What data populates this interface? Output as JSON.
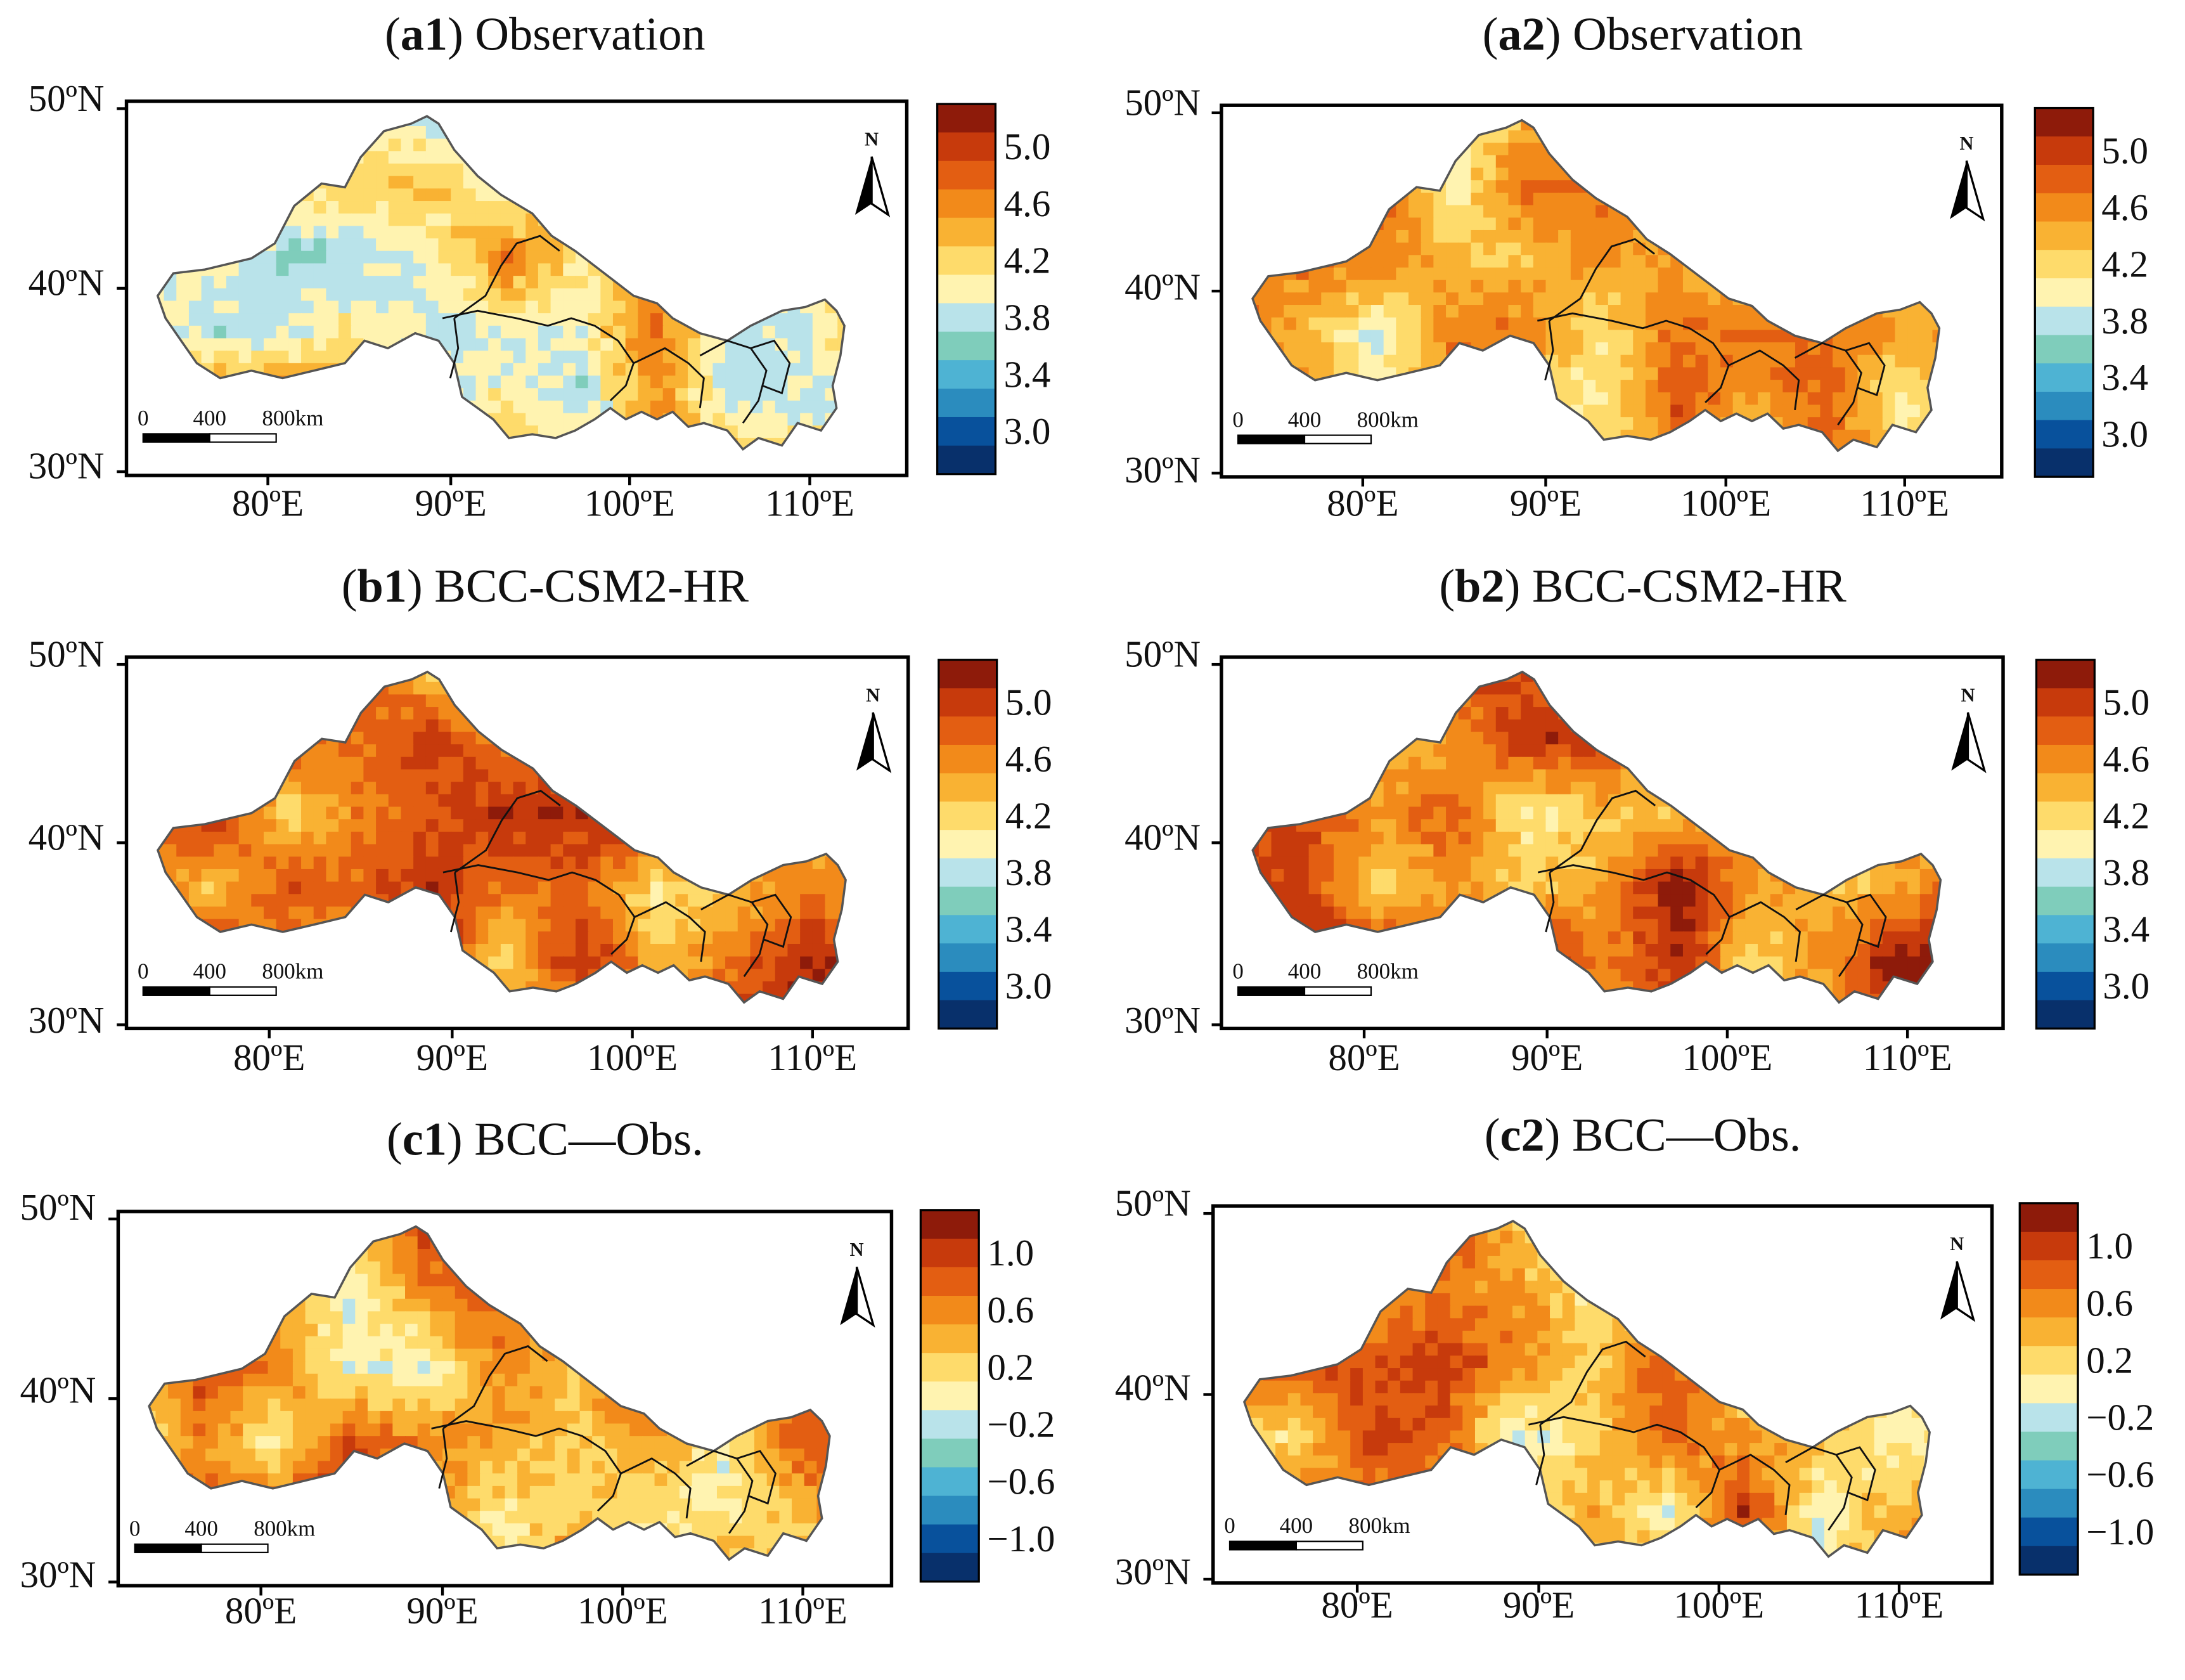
{
  "panels": [
    {
      "id": "a1",
      "title_letter": "a1",
      "title_text": "Observation",
      "legend_type": "abs",
      "legend_labels": [
        "5.0",
        "4.6",
        "4.2",
        "3.8",
        "3.4",
        "3.0"
      ],
      "base_level": 4.25,
      "variability": 0.32
    },
    {
      "id": "a2",
      "title_letter": "a2",
      "title_text": "Observation",
      "legend_type": "abs",
      "legend_labels": [
        "5.0",
        "4.6",
        "4.2",
        "3.8",
        "3.4",
        "3.0"
      ],
      "base_level": 4.35,
      "variability": 0.28
    },
    {
      "id": "b1",
      "title_letter": "b1",
      "title_text": "BCC-CSM2-HR",
      "legend_type": "abs",
      "legend_labels": [
        "5.0",
        "4.6",
        "4.2",
        "3.8",
        "3.4",
        "3.0"
      ],
      "base_level": 4.6,
      "variability": 0.3
    },
    {
      "id": "b2",
      "title_letter": "b2",
      "title_text": "BCC-CSM2-HR",
      "legend_type": "abs",
      "legend_labels": [
        "5.0",
        "4.6",
        "4.2",
        "3.8",
        "3.4",
        "3.0"
      ],
      "base_level": 4.65,
      "variability": 0.33
    },
    {
      "id": "c1",
      "title_letter": "c1",
      "title_text": "BCC—Obs.",
      "legend_type": "diff",
      "legend_labels": [
        "1.0",
        "0.6",
        "0.2",
        "−0.2",
        "−0.6",
        "−1.0"
      ],
      "base_level": 0.45,
      "variability": 0.35
    },
    {
      "id": "c2",
      "title_letter": "c2",
      "title_text": "BCC—Obs.",
      "legend_type": "diff",
      "legend_labels": [
        "1.0",
        "0.6",
        "0.2",
        "−0.2",
        "−0.6",
        "−1.0"
      ],
      "base_level": 0.4,
      "variability": 0.35
    }
  ],
  "axes": {
    "lat_labels": [
      "50ºN",
      "40ºN",
      "30ºN"
    ],
    "lon_labels": [
      "80ºE",
      "90ºE",
      "100ºE",
      "110ºE"
    ]
  },
  "north_arrow_label": "N",
  "scale_bar": {
    "labels": [
      "0",
      "400",
      "800km"
    ]
  },
  "colors": {
    "abs_ramp": [
      "#08306b",
      "#08519c",
      "#2b8cbe",
      "#4eb3d3",
      "#7fcdbb",
      "#b9e3ea",
      "#fff3b0",
      "#fedb6b",
      "#f9b233",
      "#f28a1a",
      "#e35e12",
      "#c73a0c",
      "#8e1b0a"
    ],
    "diff_ramp": [
      "#08306b",
      "#08519c",
      "#2b8cbe",
      "#4eb3d3",
      "#7fcdbb",
      "#b9e3ea",
      "#fff3b0",
      "#fedb6b",
      "#f9b233",
      "#f28a1a",
      "#e35e12",
      "#c73a0c",
      "#8e1b0a"
    ],
    "boundary": "#555555",
    "inner_boundary": "#111111",
    "frame": "#000000"
  }
}
